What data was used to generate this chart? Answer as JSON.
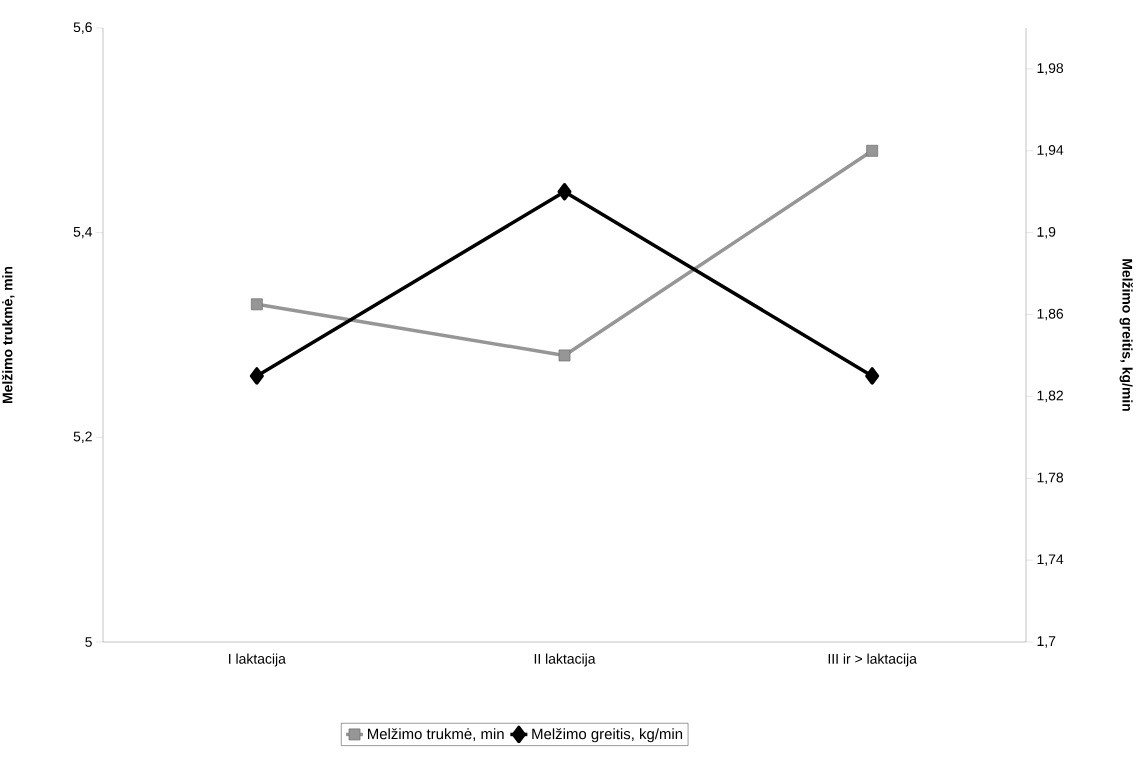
{
  "chart_data": {
    "type": "line",
    "categories": [
      "I laktacija",
      "II laktacija",
      "III ir > laktacija"
    ],
    "series": [
      {
        "name": "Melžimo trukmė, min",
        "color": "#969696",
        "marker": "square",
        "values": [
          5.33,
          5.28,
          5.48
        ]
      },
      {
        "name": "Melžimo greitis, kg/min",
        "color": "#000000",
        "marker": "diamond",
        "axis": "y2",
        "values": [
          1.83,
          1.92,
          1.83
        ]
      }
    ],
    "ylabel": "Melžimo trukmė, min",
    "y2label": "Melžimo greitis, kg/min",
    "ylim": [
      5,
      5.6
    ],
    "yticks": [
      {
        "value": 5,
        "label": "5"
      },
      {
        "value": 5.2,
        "label": "5,2"
      },
      {
        "value": 5.4,
        "label": "5,4"
      },
      {
        "value": 5.6,
        "label": "5,6"
      }
    ],
    "y2lim": [
      1.7,
      2.0
    ],
    "y2ticks": [
      {
        "value": 1.7,
        "label": "1,7"
      },
      {
        "value": 1.74,
        "label": "1,74"
      },
      {
        "value": 1.78,
        "label": "1,78"
      },
      {
        "value": 1.82,
        "label": "1,82"
      },
      {
        "value": 1.86,
        "label": "1,86"
      },
      {
        "value": 1.9,
        "label": "1,9"
      },
      {
        "value": 1.94,
        "label": "1,94"
      },
      {
        "value": 1.98,
        "label": "1,98"
      }
    ],
    "grid": false,
    "legend": "bottom"
  }
}
